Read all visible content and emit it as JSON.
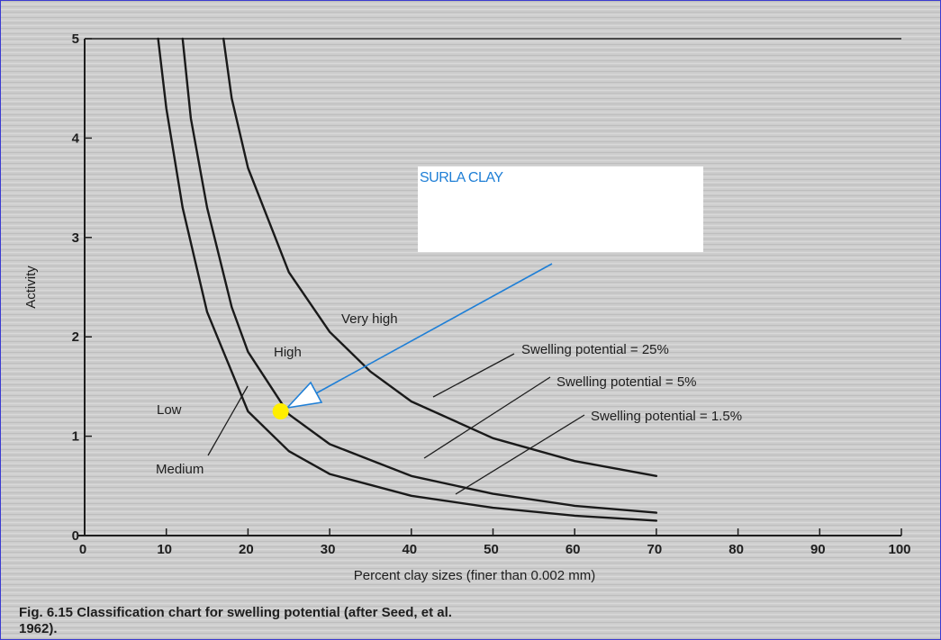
{
  "chart_data": {
    "type": "line",
    "xlabel": "Percent clay sizes (finer than 0.002 mm)",
    "ylabel": "Activity",
    "xlim": [
      0,
      100
    ],
    "ylim": [
      0,
      5
    ],
    "x_ticks": [
      "0",
      "10",
      "20",
      "30",
      "40",
      "50",
      "60",
      "70",
      "80",
      "90",
      "100"
    ],
    "y_ticks": [
      "0",
      "1",
      "2",
      "3",
      "4",
      "5"
    ],
    "grid": false,
    "series": [
      {
        "name": "Swelling potential = 1.5%",
        "x": [
          9,
          10,
          12,
          15,
          20,
          25,
          30,
          40,
          50,
          60,
          70
        ],
        "y": [
          5.0,
          4.3,
          3.3,
          2.25,
          1.25,
          0.85,
          0.62,
          0.4,
          0.28,
          0.2,
          0.15
        ]
      },
      {
        "name": "Swelling potential = 5%",
        "x": [
          12,
          13,
          15,
          18,
          20,
          25,
          30,
          40,
          50,
          60,
          70
        ],
        "y": [
          5.0,
          4.2,
          3.3,
          2.3,
          1.85,
          1.22,
          0.92,
          0.6,
          0.42,
          0.3,
          0.23
        ]
      },
      {
        "name": "Swelling potential = 25%",
        "x": [
          17,
          18,
          20,
          25,
          30,
          35,
          40,
          50,
          60,
          70
        ],
        "y": [
          5.0,
          4.4,
          3.7,
          2.65,
          2.05,
          1.65,
          1.35,
          0.98,
          0.75,
          0.6
        ]
      }
    ],
    "regions": [
      "Low",
      "Medium",
      "High",
      "Very high"
    ],
    "highlight_point": {
      "label": "SURLA CLAY",
      "x": 24,
      "y": 1.25,
      "color": "#ffee00"
    },
    "arrow_color": "#1f7fd6",
    "caption": "Fig. 6.15 Classification chart for swelling potential (after Seed, et al. 1962)."
  }
}
